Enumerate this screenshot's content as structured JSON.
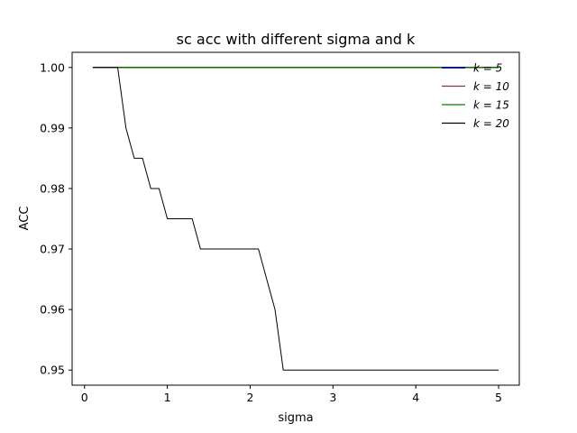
{
  "chart_data": {
    "type": "line",
    "title": "sc acc with different sigma and k",
    "xlabel": "sigma",
    "ylabel": "ACC",
    "xlim": [
      -0.15,
      5.25
    ],
    "ylim": [
      0.9475,
      1.0025
    ],
    "xticks": [
      0,
      1,
      2,
      3,
      4,
      5
    ],
    "yticks": [
      0.95,
      0.96,
      0.97,
      0.98,
      0.99,
      1.0
    ],
    "xtick_labels": [
      "0",
      "1",
      "2",
      "3",
      "4",
      "5"
    ],
    "ytick_labels": [
      "0.95",
      "0.96",
      "0.97",
      "0.98",
      "0.99",
      "1.00"
    ],
    "x": [
      0.1,
      0.2,
      0.3,
      0.4,
      0.5,
      0.6,
      0.7,
      0.8,
      0.9,
      1.0,
      1.1,
      1.2,
      1.3,
      1.4,
      1.5,
      1.6,
      1.7,
      1.8,
      1.9,
      2.0,
      2.1,
      2.2,
      2.3,
      2.4,
      2.5,
      2.6,
      2.7,
      2.8,
      2.9,
      3.0,
      3.1,
      3.2,
      3.3,
      3.4,
      3.5,
      3.6,
      3.7,
      3.8,
      3.9,
      4.0,
      4.1,
      4.2,
      4.3,
      4.4,
      4.5,
      4.6,
      4.7,
      4.8,
      4.9,
      5.0
    ],
    "series": [
      {
        "name": "k = 5",
        "color": "#00008b",
        "width": 1.5,
        "values": [
          1.0,
          1.0,
          1.0,
          1.0,
          1.0,
          1.0,
          1.0,
          1.0,
          1.0,
          1.0,
          1.0,
          1.0,
          1.0,
          1.0,
          1.0,
          1.0,
          1.0,
          1.0,
          1.0,
          1.0,
          1.0,
          1.0,
          1.0,
          1.0,
          1.0,
          1.0,
          1.0,
          1.0,
          1.0,
          1.0,
          1.0,
          1.0,
          1.0,
          1.0,
          1.0,
          1.0,
          1.0,
          1.0,
          1.0,
          1.0,
          1.0,
          1.0,
          1.0,
          1.0,
          1.0,
          1.0,
          1.0,
          1.0,
          1.0,
          1.0
        ]
      },
      {
        "name": "k = 10",
        "color": "#ff0000",
        "width": 1.0,
        "values": [
          1.0,
          1.0,
          1.0,
          1.0,
          1.0,
          1.0,
          1.0,
          1.0,
          1.0,
          1.0,
          1.0,
          1.0,
          1.0,
          1.0,
          1.0,
          1.0,
          1.0,
          1.0,
          1.0,
          1.0,
          1.0,
          1.0,
          1.0,
          1.0,
          1.0,
          1.0,
          1.0,
          1.0,
          1.0,
          1.0,
          1.0,
          1.0,
          1.0,
          1.0,
          1.0,
          1.0,
          1.0,
          1.0,
          1.0,
          1.0,
          1.0,
          1.0,
          1.0,
          1.0,
          1.0,
          1.0,
          1.0,
          1.0,
          1.0,
          1.0
        ]
      },
      {
        "name": "k = 15",
        "color": "#008000",
        "width": 1.0,
        "values": [
          1.0,
          1.0,
          1.0,
          1.0,
          1.0,
          1.0,
          1.0,
          1.0,
          1.0,
          1.0,
          1.0,
          1.0,
          1.0,
          1.0,
          1.0,
          1.0,
          1.0,
          1.0,
          1.0,
          1.0,
          1.0,
          1.0,
          1.0,
          1.0,
          1.0,
          1.0,
          1.0,
          1.0,
          1.0,
          1.0,
          1.0,
          1.0,
          1.0,
          1.0,
          1.0,
          1.0,
          1.0,
          1.0,
          1.0,
          1.0,
          1.0,
          1.0,
          1.0,
          1.0,
          1.0,
          1.0,
          1.0,
          1.0,
          1.0,
          1.0
        ]
      },
      {
        "name": "k = 20",
        "color": "#000000",
        "width": 1.0,
        "values": [
          1.0,
          1.0,
          1.0,
          1.0,
          0.99,
          0.985,
          0.985,
          0.98,
          0.98,
          0.975,
          0.975,
          0.975,
          0.975,
          0.97,
          0.97,
          0.97,
          0.97,
          0.97,
          0.97,
          0.97,
          0.97,
          0.965,
          0.96,
          0.95,
          0.95,
          0.95,
          0.95,
          0.95,
          0.95,
          0.95,
          0.95,
          0.95,
          0.95,
          0.95,
          0.95,
          0.95,
          0.95,
          0.95,
          0.95,
          0.95,
          0.95,
          0.95,
          0.95,
          0.95,
          0.95,
          0.95,
          0.95,
          0.95,
          0.95,
          0.95
        ]
      }
    ],
    "grid": false,
    "legend_position": "top-right"
  }
}
